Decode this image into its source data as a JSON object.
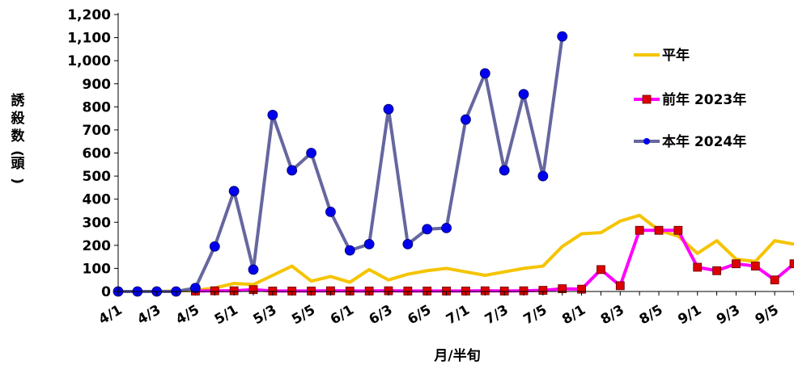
{
  "chart_data": {
    "type": "line",
    "xlabel": "月/半旬",
    "ylabel": "誘殺数(頭)",
    "ylim": [
      0,
      1200
    ],
    "yticks": [
      "0",
      "100",
      "200",
      "300",
      "400",
      "500",
      "600",
      "700",
      "800",
      "900",
      "1,000",
      "1,100",
      "1,200"
    ],
    "x_tick_labels": [
      "4/1",
      "4/3",
      "4/5",
      "5/1",
      "5/3",
      "5/5",
      "6/1",
      "6/3",
      "6/5",
      "7/1",
      "7/3",
      "7/5",
      "8/1",
      "8/3",
      "8/5",
      "9/1",
      "9/3",
      "9/5"
    ],
    "categories": [
      "4/1",
      "4/2",
      "4/3",
      "4/4",
      "4/5",
      "4/6",
      "5/1",
      "5/2",
      "5/3",
      "5/4",
      "5/5",
      "5/6",
      "6/1",
      "6/2",
      "6/3",
      "6/4",
      "6/5",
      "6/6",
      "7/1",
      "7/2",
      "7/3",
      "7/4",
      "7/5",
      "7/6",
      "8/1",
      "8/2",
      "8/3",
      "8/4",
      "8/5",
      "8/6",
      "9/1",
      "9/2",
      "9/3",
      "9/4",
      "9/5",
      "9/6"
    ],
    "legend_position": "right",
    "series": [
      {
        "name": "平年",
        "color": "#f5c400",
        "marker": "none",
        "values": [
          0,
          0,
          0,
          2,
          5,
          15,
          35,
          30,
          70,
          110,
          45,
          65,
          40,
          95,
          50,
          75,
          90,
          100,
          85,
          70,
          85,
          100,
          110,
          195,
          250,
          255,
          305,
          330,
          265,
          240,
          165,
          220,
          140,
          130,
          220,
          205
        ]
      },
      {
        "name": "前年 2023年",
        "color": "#ff00ff",
        "marker": "square",
        "marker_color": "#dd0000",
        "values": [
          null,
          null,
          null,
          null,
          2,
          3,
          3,
          8,
          2,
          2,
          2,
          3,
          2,
          2,
          3,
          2,
          2,
          2,
          2,
          3,
          2,
          3,
          5,
          12,
          10,
          95,
          25,
          265,
          265,
          265,
          105,
          90,
          120,
          110,
          50,
          120
        ]
      },
      {
        "name": "本年 2024年",
        "color": "#6666a0",
        "marker": "circle",
        "marker_color": "#0000ee",
        "values": [
          0,
          0,
          0,
          0,
          15,
          195,
          435,
          95,
          765,
          525,
          600,
          345,
          178,
          205,
          790,
          205,
          270,
          275,
          745,
          945,
          525,
          855,
          500,
          1105,
          null,
          null,
          null,
          null,
          null,
          null,
          null,
          null,
          null,
          null,
          null,
          null
        ]
      }
    ]
  }
}
